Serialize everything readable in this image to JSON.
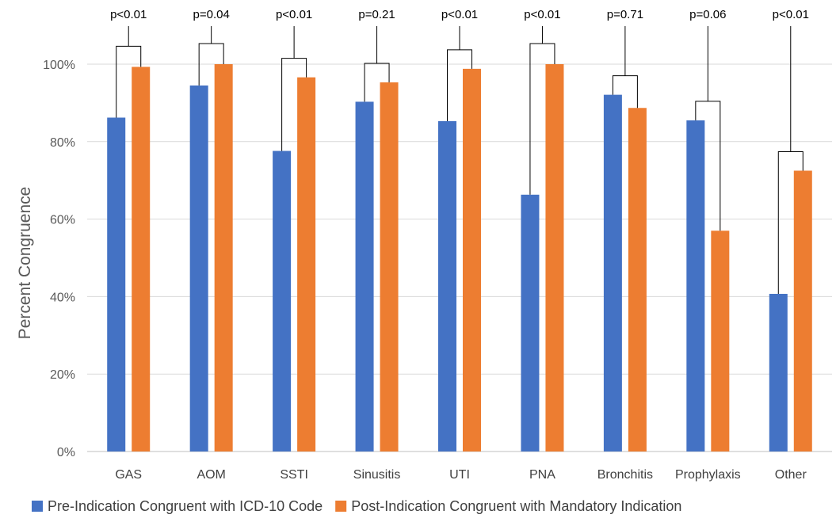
{
  "chart_data": {
    "type": "bar",
    "title": "",
    "xlabel": "",
    "ylabel": "Percent Congruence",
    "ylim": [
      0,
      100
    ],
    "yticks": [
      0,
      20,
      40,
      60,
      80,
      100
    ],
    "ytick_labels": [
      "0%",
      "20%",
      "40%",
      "60%",
      "80%",
      "100%"
    ],
    "grid": true,
    "legend_position": "bottom",
    "categories": [
      "GAS",
      "AOM",
      "SSTI",
      "Sinusitis",
      "UTI",
      "PNA",
      "Bronchitis",
      "Prophylaxis",
      "Other"
    ],
    "series": [
      {
        "name": "Pre-Indication Congruent with ICD-10 Code",
        "color": "#4472C4",
        "values": [
          86.2,
          94.5,
          77.6,
          90.3,
          85.3,
          66.3,
          92.1,
          85.5,
          40.7
        ]
      },
      {
        "name": "Post-Indication Congruent with Mandatory Indication",
        "color": "#ED7D31",
        "values": [
          99.3,
          100.0,
          96.6,
          95.3,
          98.8,
          100.0,
          88.7,
          57.0,
          72.5
        ]
      }
    ],
    "annotations": [
      "p<0.01",
      "p=0.04",
      "p<0.01",
      "p=0.21",
      "p<0.01",
      "p<0.01",
      "p=0.71",
      "p=0.06",
      "p<0.01"
    ]
  }
}
